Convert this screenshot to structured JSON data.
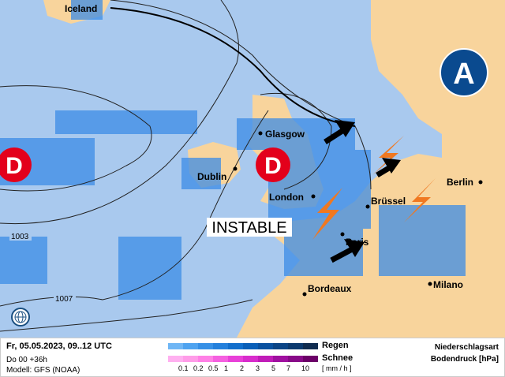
{
  "map": {
    "cities": [
      {
        "name": "Iceland"
      },
      {
        "name": "Glasgow"
      },
      {
        "name": "Dublin"
      },
      {
        "name": "London"
      },
      {
        "name": "Brüssel"
      },
      {
        "name": "Paris"
      },
      {
        "name": "Bordeaux"
      },
      {
        "name": "Milano"
      },
      {
        "name": "Berlin"
      }
    ],
    "isobars": [
      "1003",
      "1007"
    ],
    "low_label": "D",
    "high_label": "A",
    "annotation": "INSTABLE",
    "colors": {
      "sea": "#a9c9ee",
      "land": "#f8d49c",
      "rain": "#3c8ce6",
      "low": "#e3001b",
      "high": "#0a4a8f"
    }
  },
  "footer": {
    "date": "Fr, 05.05.2023, 09..12 UTC",
    "run": "Do 00 +36h",
    "model": "Modell: GFS (NOAA)",
    "rain_label": "Regen",
    "snow_label": "Schnee",
    "unit": "[ mm / h ]",
    "ticks": [
      "0.1",
      "0.2",
      "0.5",
      "1",
      "2",
      "3",
      "5",
      "7",
      "10"
    ],
    "title1": "Niederschlagsart",
    "title2": "Bodendruck [hPa]",
    "rain_colors": [
      "#6fb6f5",
      "#4ea3f0",
      "#3690e6",
      "#2380dc",
      "#126fcc",
      "#0a5fb8",
      "#0a519f",
      "#0b4586",
      "#0c3a6e",
      "#102c4f"
    ],
    "snow_colors": [
      "#ffb0f0",
      "#ff9ce8",
      "#ff80e6",
      "#f560e0",
      "#e840d8",
      "#d82ccc",
      "#c01cb8",
      "#a010a0",
      "#880a88",
      "#6c0068"
    ]
  }
}
